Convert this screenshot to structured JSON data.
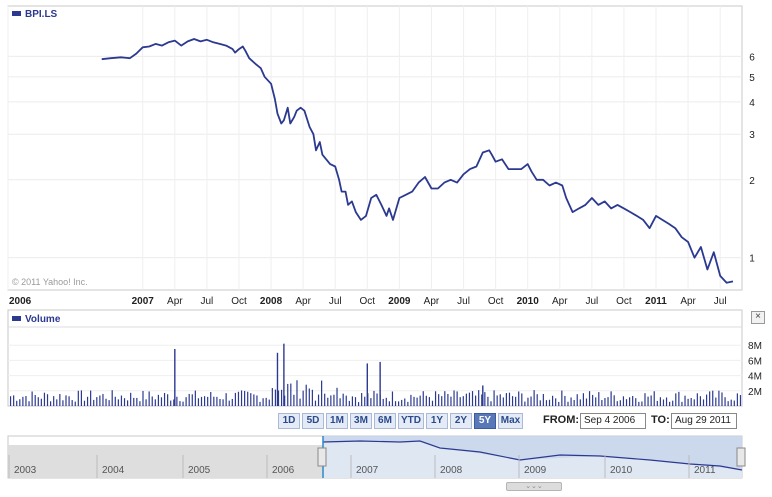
{
  "chart_data": [
    {
      "type": "line",
      "legend": "BPI.LS",
      "watermark": "© 2011 Yahoo! Inc.",
      "yscale": "log",
      "ylim": [
        0.75,
        8
      ],
      "y_ticks": [
        1,
        2,
        3,
        4,
        5,
        6
      ],
      "grid": "on",
      "x_labels": [
        {
          "label": "2006",
          "t": 2005.95
        },
        {
          "label": "2007",
          "t": 2007.0
        },
        {
          "label": "Apr",
          "t": 2007.25
        },
        {
          "label": "Jul",
          "t": 2007.5
        },
        {
          "label": "Oct",
          "t": 2007.75
        },
        {
          "label": "2008",
          "t": 2008.0
        },
        {
          "label": "Apr",
          "t": 2008.25
        },
        {
          "label": "Jul",
          "t": 2008.5
        },
        {
          "label": "Oct",
          "t": 2008.75
        },
        {
          "label": "2009",
          "t": 2009.0
        },
        {
          "label": "Apr",
          "t": 2009.25
        },
        {
          "label": "Jul",
          "t": 2009.5
        },
        {
          "label": "Oct",
          "t": 2009.75
        },
        {
          "label": "2010",
          "t": 2010.0
        },
        {
          "label": "Apr",
          "t": 2010.25
        },
        {
          "label": "Jul",
          "t": 2010.5
        },
        {
          "label": "Oct",
          "t": 2010.75
        },
        {
          "label": "2011",
          "t": 2011.0
        },
        {
          "label": "Apr",
          "t": 2011.25
        },
        {
          "label": "Jul",
          "t": 2011.5
        }
      ],
      "points": [
        [
          2006.68,
          5.85
        ],
        [
          2006.75,
          5.9
        ],
        [
          2006.83,
          5.95
        ],
        [
          2006.9,
          5.9
        ],
        [
          2006.95,
          6.15
        ],
        [
          2007.0,
          6.5
        ],
        [
          2007.05,
          6.55
        ],
        [
          2007.1,
          6.7
        ],
        [
          2007.15,
          6.6
        ],
        [
          2007.2,
          6.8
        ],
        [
          2007.25,
          6.9
        ],
        [
          2007.3,
          6.6
        ],
        [
          2007.35,
          6.85
        ],
        [
          2007.4,
          7.0
        ],
        [
          2007.45,
          6.85
        ],
        [
          2007.5,
          6.95
        ],
        [
          2007.55,
          6.8
        ],
        [
          2007.6,
          6.7
        ],
        [
          2007.65,
          6.6
        ],
        [
          2007.7,
          6.4
        ],
        [
          2007.72,
          6.2
        ],
        [
          2007.75,
          6.4
        ],
        [
          2007.78,
          6.55
        ],
        [
          2007.8,
          6.3
        ],
        [
          2007.83,
          5.9
        ],
        [
          2007.88,
          5.6
        ],
        [
          2007.92,
          5.4
        ],
        [
          2007.95,
          5.0
        ],
        [
          2008.0,
          4.7
        ],
        [
          2008.03,
          4.1
        ],
        [
          2008.05,
          3.6
        ],
        [
          2008.08,
          3.3
        ],
        [
          2008.1,
          3.4
        ],
        [
          2008.13,
          3.8
        ],
        [
          2008.15,
          3.3
        ],
        [
          2008.18,
          3.5
        ],
        [
          2008.2,
          3.7
        ],
        [
          2008.23,
          3.8
        ],
        [
          2008.26,
          3.7
        ],
        [
          2008.3,
          3.2
        ],
        [
          2008.33,
          3.0
        ],
        [
          2008.35,
          2.6
        ],
        [
          2008.38,
          2.8
        ],
        [
          2008.4,
          2.5
        ],
        [
          2008.43,
          2.4
        ],
        [
          2008.46,
          2.3
        ],
        [
          2008.5,
          2.25
        ],
        [
          2008.53,
          2.0
        ],
        [
          2008.55,
          1.8
        ],
        [
          2008.58,
          1.8
        ],
        [
          2008.6,
          1.6
        ],
        [
          2008.63,
          1.65
        ],
        [
          2008.66,
          1.5
        ],
        [
          2008.7,
          1.4
        ],
        [
          2008.74,
          1.45
        ],
        [
          2008.78,
          1.7
        ],
        [
          2008.82,
          1.75
        ],
        [
          2008.86,
          1.6
        ],
        [
          2008.9,
          1.45
        ],
        [
          2008.92,
          1.55
        ],
        [
          2008.95,
          1.4
        ],
        [
          2009.0,
          1.7
        ],
        [
          2009.05,
          1.75
        ],
        [
          2009.1,
          1.8
        ],
        [
          2009.15,
          1.95
        ],
        [
          2009.2,
          2.05
        ],
        [
          2009.25,
          1.85
        ],
        [
          2009.3,
          1.85
        ],
        [
          2009.35,
          1.95
        ],
        [
          2009.4,
          2.0
        ],
        [
          2009.45,
          1.95
        ],
        [
          2009.5,
          2.1
        ],
        [
          2009.55,
          2.2
        ],
        [
          2009.6,
          2.25
        ],
        [
          2009.65,
          2.55
        ],
        [
          2009.7,
          2.6
        ],
        [
          2009.72,
          2.5
        ],
        [
          2009.75,
          2.35
        ],
        [
          2009.8,
          2.4
        ],
        [
          2009.85,
          2.2
        ],
        [
          2009.9,
          2.2
        ],
        [
          2009.95,
          2.2
        ],
        [
          2010.0,
          2.3
        ],
        [
          2010.03,
          2.15
        ],
        [
          2010.07,
          2.0
        ],
        [
          2010.12,
          2.0
        ],
        [
          2010.17,
          1.9
        ],
        [
          2010.22,
          1.95
        ],
        [
          2010.27,
          1.9
        ],
        [
          2010.3,
          1.7
        ],
        [
          2010.35,
          1.5
        ],
        [
          2010.4,
          1.55
        ],
        [
          2010.45,
          1.6
        ],
        [
          2010.5,
          1.7
        ],
        [
          2010.55,
          1.6
        ],
        [
          2010.6,
          1.65
        ],
        [
          2010.65,
          1.55
        ],
        [
          2010.7,
          1.6
        ],
        [
          2010.75,
          1.55
        ],
        [
          2010.8,
          1.5
        ],
        [
          2010.85,
          1.45
        ],
        [
          2010.9,
          1.4
        ],
        [
          2010.95,
          1.3
        ],
        [
          2011.0,
          1.45
        ],
        [
          2011.05,
          1.4
        ],
        [
          2011.1,
          1.35
        ],
        [
          2011.15,
          1.3
        ],
        [
          2011.2,
          1.2
        ],
        [
          2011.25,
          1.15
        ],
        [
          2011.3,
          1.0
        ],
        [
          2011.35,
          1.1
        ],
        [
          2011.4,
          0.9
        ],
        [
          2011.45,
          1.05
        ],
        [
          2011.5,
          0.85
        ],
        [
          2011.55,
          0.8
        ],
        [
          2011.6,
          0.81
        ]
      ]
    },
    {
      "type": "bar",
      "legend": "Volume",
      "y_ticks": [
        {
          "label": "2M",
          "value": 2
        },
        {
          "label": "4M",
          "value": 4
        },
        {
          "label": "6M",
          "value": 6
        },
        {
          "label": "8M",
          "value": 8
        }
      ],
      "ylim": [
        0,
        10
      ],
      "spikes": [
        [
          2007.25,
          7.5
        ],
        [
          2008.05,
          7.0
        ],
        [
          2008.1,
          8.2
        ],
        [
          2008.75,
          5.6
        ],
        [
          2008.85,
          5.8
        ],
        [
          2009.65,
          2.7
        ]
      ]
    }
  ],
  "range_buttons": [
    "1D",
    "5D",
    "1M",
    "3M",
    "6M",
    "YTD",
    "1Y",
    "2Y",
    "5Y",
    "Max"
  ],
  "selected_range": "5Y",
  "from_label": "FROM:",
  "from_date": "Sep 4 2006",
  "to_label": "TO:",
  "to_date": "Aug 29 2011",
  "close_glyph": "×",
  "grip_glyph": "⌄⌄⌄",
  "navigator": {
    "years": [
      "2003",
      "2004",
      "2005",
      "2006",
      "2007",
      "2008",
      "2009",
      "2010",
      "2011"
    ]
  }
}
